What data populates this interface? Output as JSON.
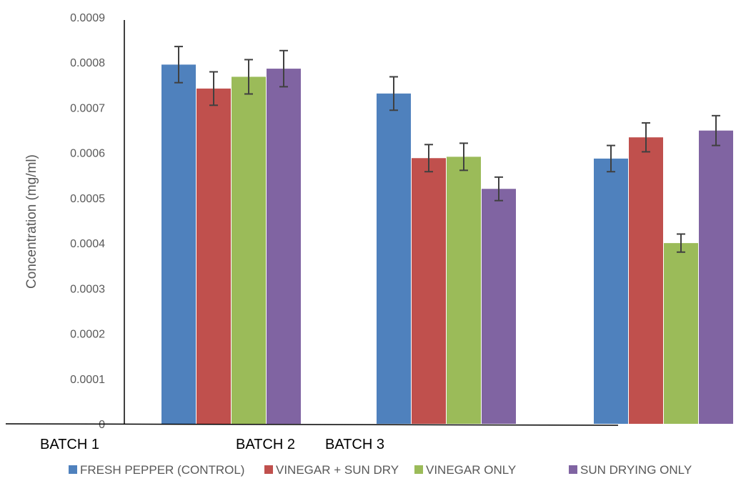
{
  "chart_data": {
    "type": "bar",
    "title": "",
    "xlabel": "",
    "ylabel": "Concentration (mg/ml)",
    "ylim": [
      0,
      0.0009
    ],
    "y_ticks": [
      "0",
      "0.0001",
      "0.0002",
      "0.0003",
      "0.0004",
      "0.0005",
      "0.0006",
      "0.0007",
      "0.0008",
      "0.0009"
    ],
    "categories": [
      "BATCH 1",
      "BATCH 2",
      "BATCH 3"
    ],
    "grid": false,
    "legend_position": "bottom",
    "error_bars": true,
    "series": [
      {
        "name": "FRESH PEPPER (CONTROL)",
        "color": "#4F81BD",
        "values": [
          0.000795,
          0.000731,
          0.000587
        ],
        "errors": [
          4e-05,
          3.7e-05,
          2.9e-05
        ]
      },
      {
        "name": "VINEGAR + SUN DRY",
        "color": "#C0504D",
        "values": [
          0.000742,
          0.000588,
          0.000634
        ],
        "errors": [
          3.7e-05,
          3e-05,
          3.2e-05
        ]
      },
      {
        "name": "VINEGAR ONLY",
        "color": "#9BBB59",
        "values": [
          0.000768,
          0.000591,
          0.0004
        ],
        "errors": [
          3.8e-05,
          3e-05,
          2e-05
        ]
      },
      {
        "name": "SUN DRYING ONLY",
        "color": "#8064A2",
        "values": [
          0.000786,
          0.00052,
          0.000649
        ],
        "errors": [
          4e-05,
          2.6e-05,
          3.3e-05
        ]
      }
    ]
  }
}
